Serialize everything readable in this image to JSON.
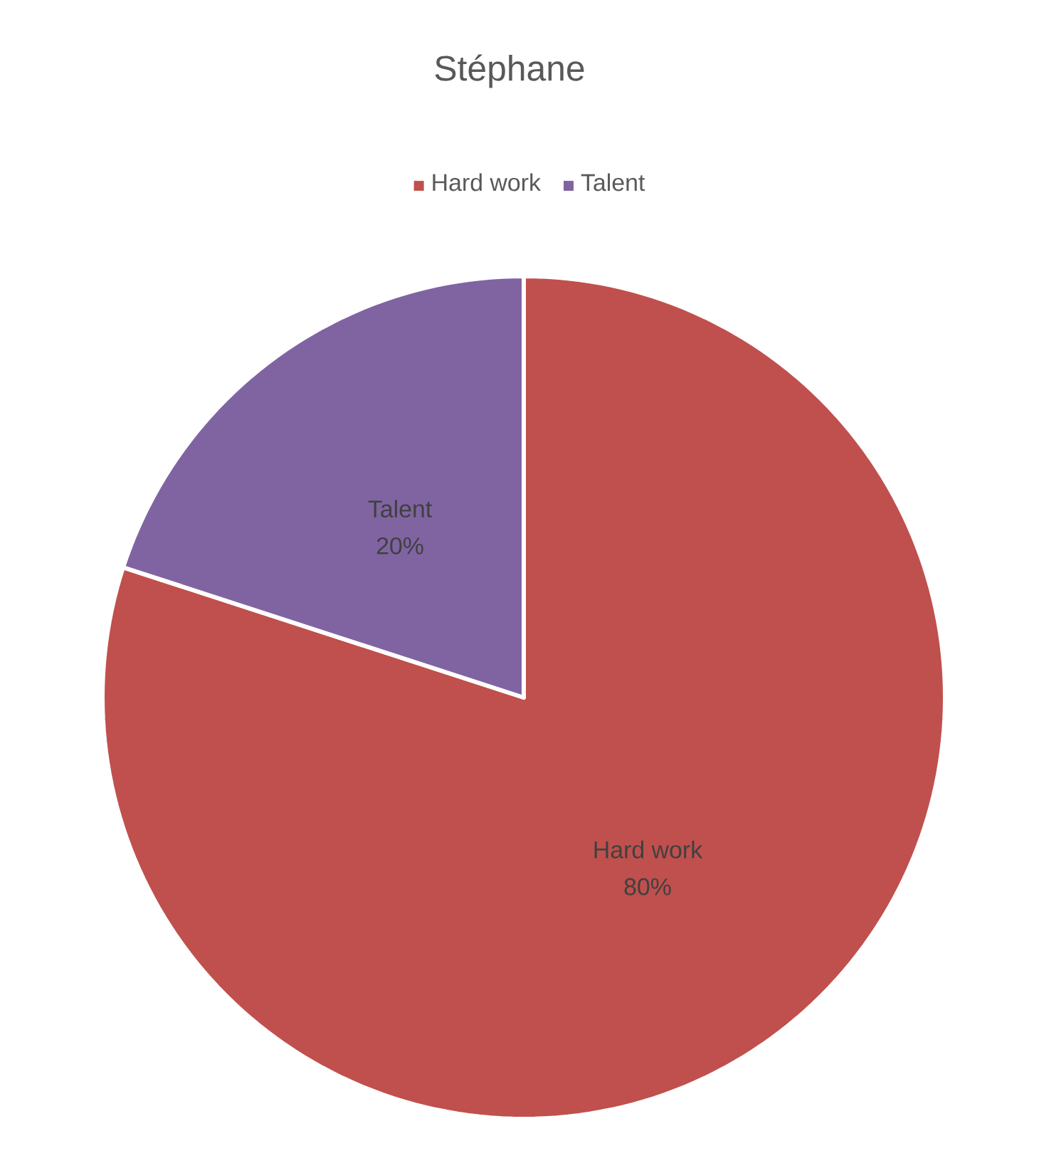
{
  "chart_data": {
    "type": "pie",
    "title": "Stéphane",
    "categories": [
      "Hard work",
      "Talent"
    ],
    "values": [
      80,
      20
    ],
    "colors": [
      "#c0504d",
      "#8064a2"
    ],
    "legend": "top",
    "value_labels": [
      "80%",
      "20%"
    ]
  }
}
